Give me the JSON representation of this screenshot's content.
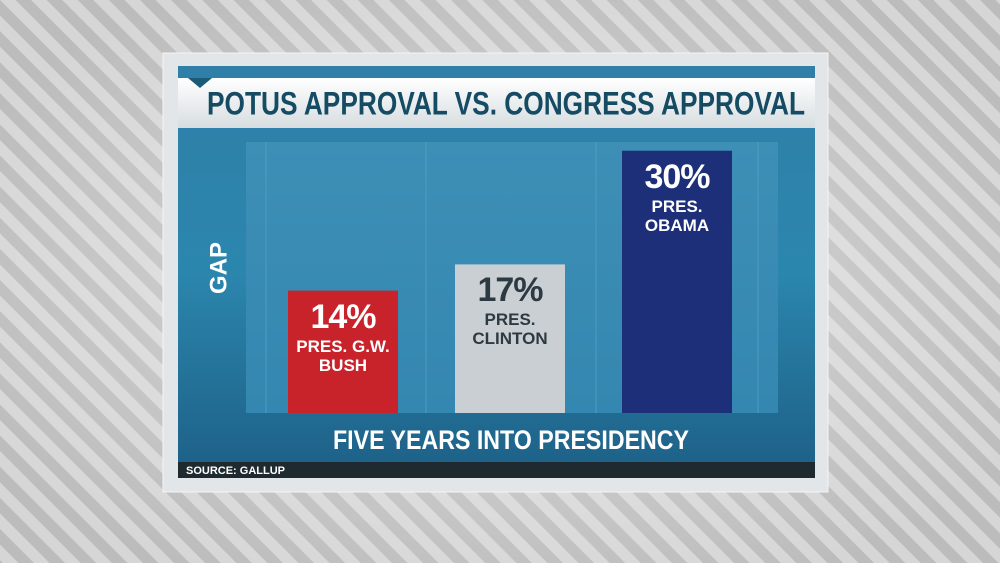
{
  "chart_data": {
    "type": "bar",
    "title": "POTUS APPROVAL VS. CONGRESS APPROVAL",
    "y_label": "GAP",
    "x_label": "FIVE YEARS INTO PRESIDENCY",
    "source": "SOURCE: GALLUP",
    "categories": [
      "PRES. G.W. BUSH",
      "PRES. CLINTON",
      "PRES. OBAMA"
    ],
    "values": [
      14,
      17,
      30
    ],
    "value_labels": [
      "14%",
      "17%",
      "30%"
    ],
    "colors": [
      "#c8232a",
      "#c9cfd3",
      "#1c2f78"
    ],
    "ylim": [
      0,
      31
    ]
  }
}
